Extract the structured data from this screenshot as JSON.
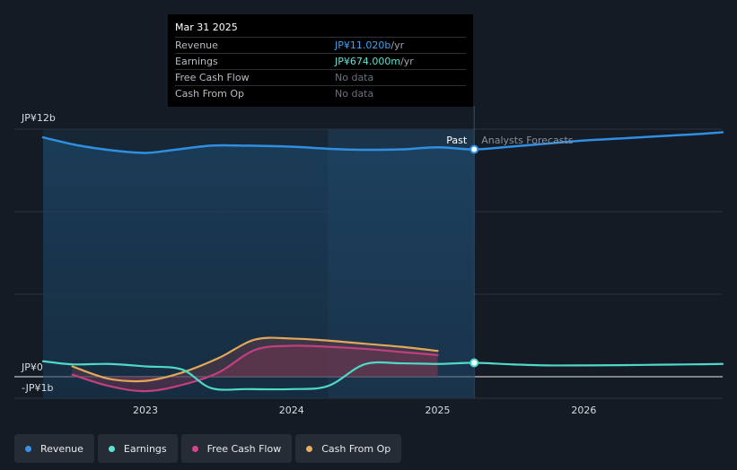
{
  "tooltip": {
    "date": "Mar 31 2025",
    "rows": [
      {
        "label": "Revenue",
        "value": "JP¥11.020b",
        "unit": " /yr"
      },
      {
        "label": "Earnings",
        "value": "JP¥674.000m",
        "unit": " /yr"
      },
      {
        "label": "Free Cash Flow",
        "value": "No data",
        "unit": ""
      },
      {
        "label": "Cash From Op",
        "value": "No data",
        "unit": ""
      }
    ]
  },
  "chart_data": {
    "type": "line",
    "y_labels": {
      "top": "JP¥12b",
      "zero": "JP¥0",
      "bottom": "-JP¥1b"
    },
    "ylim": [
      -1,
      12
    ],
    "xlim": [
      2022.3,
      2026.95
    ],
    "x_ticks": [
      2023,
      2024,
      2025,
      2026
    ],
    "x_tick_labels": [
      "2023",
      "2024",
      "2025",
      "2026"
    ],
    "past_label": "Past",
    "forecast_label": "Analysts Forecasts",
    "divider_x": 2025.25,
    "highlight_start_x": 2024.25,
    "colors": {
      "revenue": "#2f8fe0",
      "earnings": "#4fd8c8",
      "free_cash_flow": "#c0407e",
      "cash_from_op": "#e2a75a"
    },
    "series": [
      {
        "name": "Revenue",
        "key": "revenue",
        "x": [
          2022.3,
          2022.55,
          2022.8,
          2023.0,
          2023.2,
          2023.45,
          2023.7,
          2024.0,
          2024.25,
          2024.5,
          2024.75,
          2025.0,
          2025.25,
          2025.5,
          2025.75,
          2026.0,
          2026.25,
          2026.5,
          2026.75,
          2026.95
        ],
        "values": [
          11.6,
          11.2,
          10.95,
          10.85,
          11.0,
          11.2,
          11.2,
          11.15,
          11.05,
          11.0,
          11.02,
          11.12,
          11.02,
          11.15,
          11.3,
          11.45,
          11.55,
          11.65,
          11.75,
          11.85
        ]
      },
      {
        "name": "Earnings",
        "key": "earnings",
        "x": [
          2022.3,
          2022.5,
          2022.75,
          2023.0,
          2023.25,
          2023.45,
          2023.7,
          2024.0,
          2024.25,
          2024.5,
          2024.75,
          2025.0,
          2025.25,
          2025.5,
          2025.75,
          2026.0,
          2026.25,
          2026.5,
          2026.75,
          2026.95
        ],
        "values": [
          0.75,
          0.6,
          0.62,
          0.5,
          0.35,
          -0.55,
          -0.6,
          -0.6,
          -0.45,
          0.6,
          0.65,
          0.62,
          0.674,
          0.6,
          0.55,
          0.55,
          0.56,
          0.58,
          0.6,
          0.62
        ]
      },
      {
        "name": "Free Cash Flow",
        "key": "free_cash_flow",
        "x": [
          2022.5,
          2022.75,
          2023.0,
          2023.25,
          2023.5,
          2023.75,
          2024.0,
          2024.25,
          2024.5,
          2024.75,
          2025.0
        ],
        "values": [
          0.1,
          -0.45,
          -0.7,
          -0.4,
          0.2,
          1.3,
          1.5,
          1.45,
          1.35,
          1.2,
          1.05
        ]
      },
      {
        "name": "Cash From Op",
        "key": "cash_from_op",
        "x": [
          2022.5,
          2022.75,
          2023.0,
          2023.25,
          2023.5,
          2023.75,
          2024.0,
          2024.25,
          2024.5,
          2024.75,
          2025.0
        ],
        "values": [
          0.5,
          -0.1,
          -0.2,
          0.2,
          0.9,
          1.8,
          1.85,
          1.75,
          1.6,
          1.45,
          1.25
        ]
      }
    ]
  },
  "legend": [
    {
      "label": "Revenue",
      "color": "#3a92e8"
    },
    {
      "label": "Earnings",
      "color": "#5ce3d3"
    },
    {
      "label": "Free Cash Flow",
      "color": "#d2468a"
    },
    {
      "label": "Cash From Op",
      "color": "#e8ad5e"
    }
  ]
}
